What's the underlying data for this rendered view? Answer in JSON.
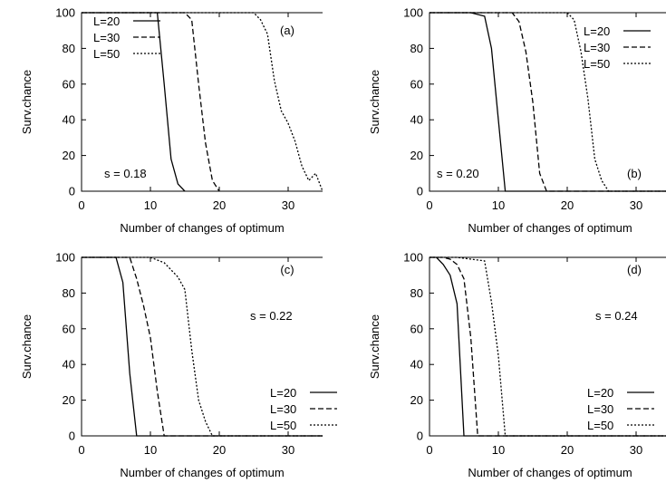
{
  "chart_data": [
    {
      "type": "line",
      "panel_label": "(a)",
      "annotation": "s = 0.18",
      "xlabel": "Number of changes of optimum",
      "ylabel": "Surv.chance",
      "xlim": [
        0,
        35
      ],
      "ylim": [
        0,
        100
      ],
      "xticks": [
        0,
        10,
        20,
        30
      ],
      "yticks": [
        0,
        20,
        40,
        60,
        80,
        100
      ],
      "legend_position": "top-left",
      "series": [
        {
          "name": "L=20",
          "dash": "solid",
          "x": [
            0,
            1,
            2,
            3,
            4,
            5,
            6,
            7,
            8,
            9,
            10,
            11,
            12,
            13,
            14,
            15
          ],
          "y": [
            100,
            100,
            100,
            100,
            100,
            100,
            100,
            100,
            100,
            100,
            100,
            100,
            60,
            18,
            4,
            0
          ]
        },
        {
          "name": "L=30",
          "dash": "dashed",
          "x": [
            0,
            2,
            4,
            6,
            8,
            10,
            12,
            14,
            15,
            16,
            17,
            18,
            19,
            20
          ],
          "y": [
            100,
            100,
            100,
            100,
            100,
            100,
            100,
            100,
            100,
            96,
            60,
            27,
            6,
            0
          ]
        },
        {
          "name": "L=50",
          "dash": "dotted",
          "x": [
            0,
            5,
            10,
            15,
            20,
            25,
            26,
            27,
            28,
            29,
            30,
            31,
            32,
            33,
            34,
            35
          ],
          "y": [
            100,
            100,
            100,
            100,
            100,
            100,
            96,
            88,
            62,
            45,
            38,
            28,
            14,
            6,
            10,
            0
          ]
        }
      ]
    },
    {
      "type": "line",
      "panel_label": "(b)",
      "annotation": "s = 0.20",
      "xlabel": "Number of changes of optimum",
      "ylabel": "Surv.chance",
      "xlim": [
        0,
        35
      ],
      "ylim": [
        0,
        100
      ],
      "xticks": [
        0,
        10,
        20,
        30
      ],
      "yticks": [
        0,
        20,
        40,
        60,
        80,
        100
      ],
      "legend_position": "top-right",
      "series": [
        {
          "name": "L=20",
          "dash": "solid",
          "x": [
            0,
            2,
            4,
            6,
            8,
            9,
            10,
            11,
            12,
            14,
            16,
            18,
            20,
            22,
            24,
            26,
            28,
            30,
            32,
            35
          ],
          "y": [
            100,
            100,
            100,
            100,
            98,
            80,
            40,
            0,
            0,
            0,
            0,
            0,
            0,
            0,
            0,
            0,
            0,
            0,
            0,
            0
          ]
        },
        {
          "name": "L=30",
          "dash": "dashed",
          "x": [
            0,
            4,
            8,
            12,
            13,
            14,
            15,
            16,
            17,
            20,
            25,
            30,
            35
          ],
          "y": [
            100,
            100,
            100,
            100,
            95,
            78,
            50,
            10,
            0,
            0,
            0,
            0,
            0
          ]
        },
        {
          "name": "L=50",
          "dash": "dotted",
          "x": [
            0,
            5,
            10,
            15,
            20,
            21,
            22,
            23,
            24,
            25,
            26,
            28,
            30,
            32,
            35
          ],
          "y": [
            100,
            100,
            100,
            100,
            100,
            96,
            78,
            52,
            18,
            6,
            0,
            0,
            0,
            0,
            0
          ]
        }
      ]
    },
    {
      "type": "line",
      "panel_label": "(c)",
      "annotation": "s = 0.22",
      "xlabel": "Number of changes of optimum",
      "ylabel": "Surv.chance",
      "xlim": [
        0,
        35
      ],
      "ylim": [
        0,
        100
      ],
      "xticks": [
        0,
        10,
        20,
        30
      ],
      "yticks": [
        0,
        20,
        40,
        60,
        80,
        100
      ],
      "legend_position": "bottom-right",
      "series": [
        {
          "name": "L=20",
          "dash": "solid",
          "x": [
            0,
            1,
            2,
            3,
            4,
            5,
            6,
            7,
            8,
            10,
            15,
            20,
            25,
            30,
            35
          ],
          "y": [
            100,
            100,
            100,
            100,
            100,
            100,
            86,
            35,
            0,
            0,
            0,
            0,
            0,
            0,
            0
          ]
        },
        {
          "name": "L=30",
          "dash": "dashed",
          "x": [
            0,
            2,
            4,
            6,
            7,
            8,
            9,
            10,
            11,
            12,
            15,
            20,
            25,
            30,
            35
          ],
          "y": [
            100,
            100,
            100,
            100,
            100,
            88,
            73,
            55,
            25,
            0,
            0,
            0,
            0,
            0,
            0
          ]
        },
        {
          "name": "L=50",
          "dash": "dotted",
          "x": [
            0,
            2,
            4,
            6,
            8,
            10,
            12,
            13,
            14,
            15,
            16,
            17,
            18,
            19,
            20,
            25,
            30,
            35
          ],
          "y": [
            100,
            100,
            100,
            100,
            100,
            100,
            97,
            93,
            89,
            82,
            48,
            20,
            8,
            0,
            0,
            0,
            0,
            0
          ]
        }
      ]
    },
    {
      "type": "line",
      "panel_label": "(d)",
      "annotation": "s = 0.24",
      "xlabel": "Number of changes of optimum",
      "ylabel": "Surv.chance",
      "xlim": [
        0,
        35
      ],
      "ylim": [
        0,
        100
      ],
      "xticks": [
        0,
        10,
        20,
        30
      ],
      "yticks": [
        0,
        20,
        40,
        60,
        80,
        100
      ],
      "legend_position": "bottom-right",
      "series": [
        {
          "name": "L=20",
          "dash": "solid",
          "x": [
            0,
            1,
            2,
            3,
            4,
            5,
            6,
            8,
            10,
            15,
            20,
            25,
            30,
            35
          ],
          "y": [
            100,
            100,
            96,
            90,
            74,
            0,
            0,
            0,
            0,
            0,
            0,
            0,
            0,
            0
          ]
        },
        {
          "name": "L=30",
          "dash": "dashed",
          "x": [
            0,
            1,
            2,
            3,
            4,
            5,
            6,
            7,
            8,
            10,
            15,
            20,
            25,
            30,
            35
          ],
          "y": [
            100,
            100,
            100,
            99,
            96,
            88,
            55,
            0,
            0,
            0,
            0,
            0,
            0,
            0,
            0
          ]
        },
        {
          "name": "L=50",
          "dash": "dotted",
          "x": [
            0,
            2,
            4,
            6,
            8,
            9,
            10,
            11,
            12,
            15,
            20,
            25,
            30,
            35
          ],
          "y": [
            100,
            100,
            100,
            99,
            98,
            75,
            45,
            0,
            0,
            0,
            0,
            0,
            0,
            0
          ]
        }
      ]
    }
  ]
}
